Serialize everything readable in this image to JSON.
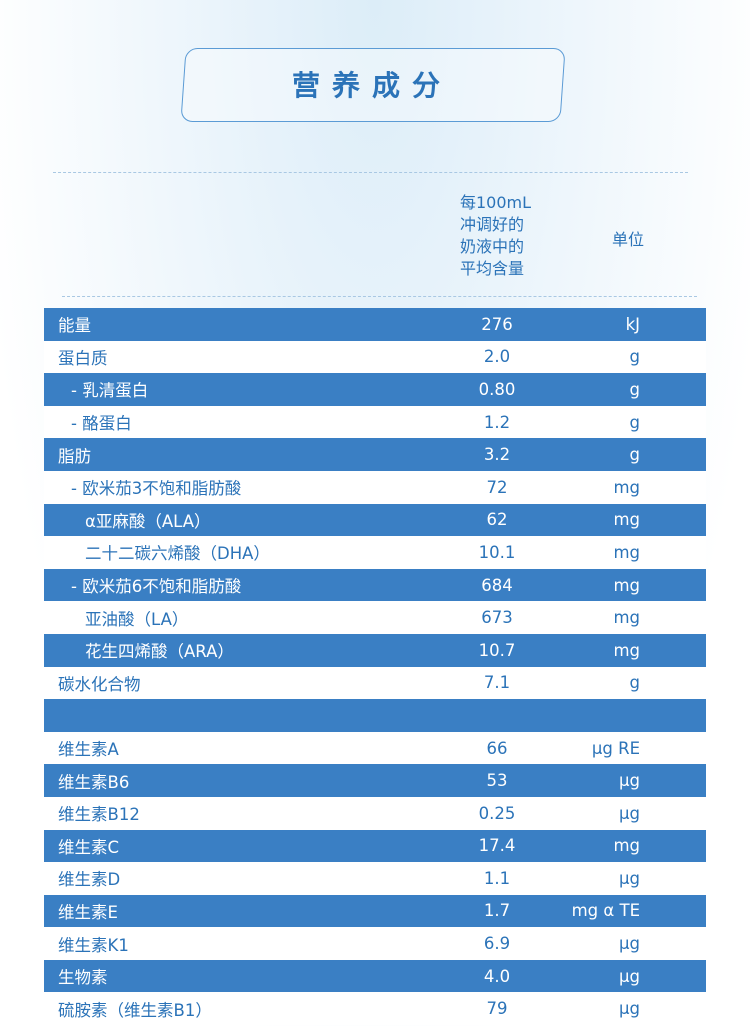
{
  "title": "营养成分",
  "header": {
    "amount_lines": [
      "每100mL",
      "冲调好的",
      "奶液中的",
      "平均含量"
    ],
    "unit": "单位"
  },
  "rows": [
    {
      "name": "能量",
      "value": "276",
      "unit": "kJ",
      "indent": 0,
      "shade": "blue"
    },
    {
      "name": "蛋白质",
      "value": "2.0",
      "unit": "g",
      "indent": 0,
      "shade": "white"
    },
    {
      "name": "- 乳清蛋白",
      "value": "0.80",
      "unit": "g",
      "indent": 1,
      "shade": "blue"
    },
    {
      "name": "- 酪蛋白",
      "value": "1.2",
      "unit": "g",
      "indent": 1,
      "shade": "white"
    },
    {
      "name": "脂肪",
      "value": "3.2",
      "unit": "g",
      "indent": 0,
      "shade": "blue"
    },
    {
      "name": "- 欧米茄3不饱和脂肪酸",
      "value": "72",
      "unit": "mg",
      "indent": 1,
      "shade": "white"
    },
    {
      "name": "α亚麻酸（ALA）",
      "value": "62",
      "unit": "mg",
      "indent": 2,
      "shade": "blue"
    },
    {
      "name": "二十二碳六烯酸（DHA）",
      "value": "10.1",
      "unit": "mg",
      "indent": 2,
      "shade": "white"
    },
    {
      "name": "- 欧米茄6不饱和脂肪酸",
      "value": "684",
      "unit": "mg",
      "indent": 1,
      "shade": "blue"
    },
    {
      "name": "亚油酸（LA）",
      "value": "673",
      "unit": "mg",
      "indent": 2,
      "shade": "white"
    },
    {
      "name": "花生四烯酸（ARA）",
      "value": "10.7",
      "unit": "mg",
      "indent": 2,
      "shade": "blue"
    },
    {
      "name": "碳水化合物",
      "value": "7.1",
      "unit": "g",
      "indent": 0,
      "shade": "white"
    },
    {
      "name": "",
      "value": "",
      "unit": "",
      "indent": 0,
      "shade": "blue"
    },
    {
      "name": "维生素A",
      "value": "66",
      "unit": "µg RE",
      "indent": 0,
      "shade": "white"
    },
    {
      "name": "维生素B6",
      "value": "53",
      "unit": "µg",
      "indent": 0,
      "shade": "blue"
    },
    {
      "name": "维生素B12",
      "value": "0.25",
      "unit": "µg",
      "indent": 0,
      "shade": "white"
    },
    {
      "name": "维生素C",
      "value": "17.4",
      "unit": "mg",
      "indent": 0,
      "shade": "blue"
    },
    {
      "name": "维生素D",
      "value": "1.1",
      "unit": "µg",
      "indent": 0,
      "shade": "white"
    },
    {
      "name": "维生素E",
      "value": "1.7",
      "unit": "mg α TE",
      "indent": 0,
      "shade": "blue"
    },
    {
      "name": "维生素K1",
      "value": "6.9",
      "unit": "µg",
      "indent": 0,
      "shade": "white"
    },
    {
      "name": "生物素",
      "value": "4.0",
      "unit": "µg",
      "indent": 0,
      "shade": "blue"
    },
    {
      "name": "硫胺素（维生素B1）",
      "value": "79",
      "unit": "µg",
      "indent": 0,
      "shade": "white"
    }
  ]
}
